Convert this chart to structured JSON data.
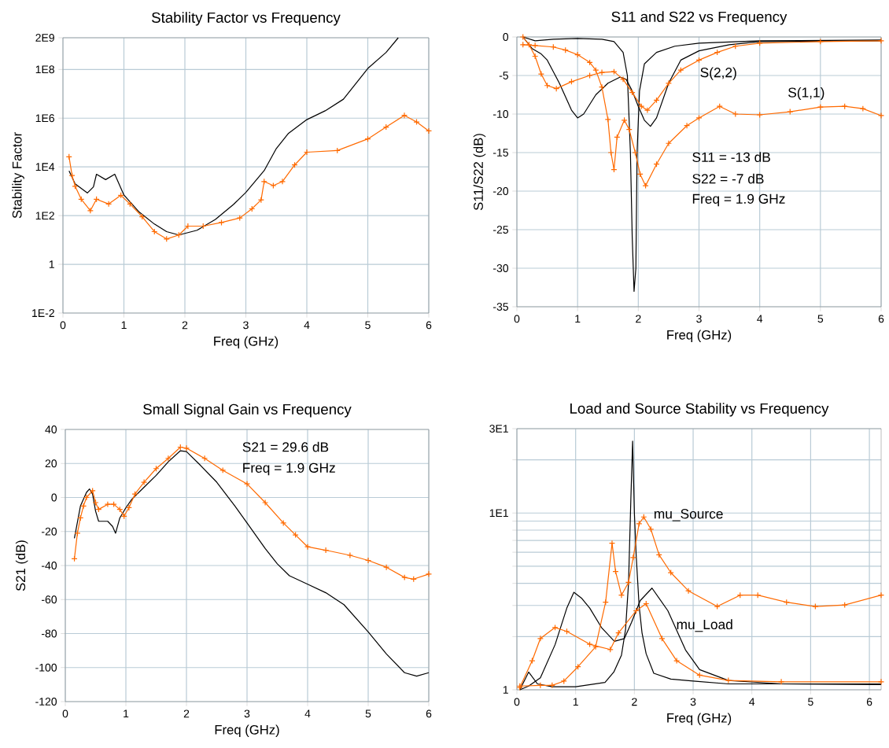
{
  "chart_data": [
    {
      "type": "line",
      "title": "Stability Factor vs Frequency",
      "xlabel": "Freq (GHz)",
      "ylabel": "Stability Factor",
      "log": true,
      "grid": true,
      "xlim": [
        0,
        6
      ],
      "xticks": [
        0,
        1,
        2,
        3,
        4,
        5,
        6
      ],
      "ylim": [
        0.01,
        2000000000
      ],
      "yticks": [
        {
          "value": 0.01,
          "label": "1E-2"
        },
        1,
        {
          "value": 100,
          "label": "1E2"
        },
        {
          "value": 10000,
          "label": "1E4"
        },
        {
          "value": 1000000,
          "label": "1E6"
        },
        {
          "value": 100000000,
          "label": "1E8"
        },
        {
          "value": 2000000000,
          "label": "2E9"
        }
      ],
      "series": [
        {
          "color": "#000000",
          "marker": "none",
          "x": [
            0.1,
            0.2,
            0.4,
            0.5,
            0.55,
            0.7,
            0.85,
            1.0,
            1.25,
            1.5,
            1.7,
            1.9,
            2.2,
            2.5,
            2.8,
            3.0,
            3.3,
            3.5,
            3.7,
            4.0,
            4.3,
            4.6,
            5.0,
            5.3,
            5.5
          ],
          "values": [
            6800,
            2000,
            850,
            1500,
            5000,
            3000,
            5000,
            700,
            140,
            45,
            22,
            16,
            25,
            70,
            290,
            900,
            7000,
            57000,
            240000,
            870000,
            2000000,
            6000000,
            110000000,
            500000000,
            2000000000
          ]
        },
        {
          "color": "#ff6a00",
          "marker": "cross",
          "x": [
            0.1,
            0.15,
            0.2,
            0.3,
            0.45,
            0.55,
            0.75,
            0.95,
            1.1,
            1.3,
            1.5,
            1.7,
            1.9,
            2.05,
            2.3,
            2.6,
            2.9,
            3.1,
            3.25,
            3.3,
            3.45,
            3.6,
            3.8,
            4.0,
            4.5,
            5.0,
            5.3,
            5.6,
            5.8,
            6.0
          ],
          "values": [
            26000,
            4400,
            1600,
            470,
            160,
            470,
            300,
            680,
            300,
            90,
            22,
            11,
            16,
            37,
            37,
            52,
            80,
            190,
            440,
            2500,
            1700,
            2500,
            12000,
            40000,
            47000,
            140000,
            430000,
            1300000,
            700000,
            300000
          ]
        }
      ]
    },
    {
      "type": "line",
      "title": "S11 and S22 vs Frequency",
      "xlabel": "Freq (GHz)",
      "ylabel": "S11/S22 (dB)",
      "grid": true,
      "xlim": [
        0,
        6
      ],
      "xticks": [
        0,
        1,
        2,
        3,
        4,
        5,
        6
      ],
      "ylim": [
        -35,
        0
      ],
      "yticks": [
        -35,
        -30,
        -25,
        -20,
        -15,
        -10,
        -5,
        0
      ],
      "annotations": [
        "S(2,2)",
        "S(1,1)",
        "S11 = -13 dB",
        "S22 = -7 dB",
        "Freq = 1.9 GHz"
      ],
      "series": [
        {
          "color": "#000000",
          "marker": "none",
          "x": [
            0.1,
            0.3,
            0.6,
            1.0,
            1.4,
            1.6,
            1.75,
            1.82,
            1.87,
            1.9,
            1.93,
            1.96,
            1.98,
            2.02,
            2.1,
            2.3,
            2.6,
            3.0,
            4.0,
            6.0
          ],
          "values": [
            0,
            -0.5,
            -0.3,
            -0.2,
            -0.3,
            -0.6,
            -2,
            -5,
            -15,
            -26,
            -33,
            -30,
            -15,
            -7,
            -3.5,
            -2,
            -1.2,
            -0.8,
            -0.5,
            -0.4
          ]
        },
        {
          "color": "#000000",
          "marker": "none",
          "x": [
            0.1,
            0.25,
            0.4,
            0.5,
            0.7,
            0.9,
            1.0,
            1.1,
            1.3,
            1.5,
            1.7,
            1.8,
            1.9,
            2.0,
            2.1,
            2.2,
            2.3,
            2.5,
            2.7,
            3.0,
            3.5,
            4.0,
            6.0
          ],
          "values": [
            0,
            -1.5,
            -2.2,
            -3,
            -6,
            -9.5,
            -10.5,
            -10,
            -7.5,
            -6,
            -5.2,
            -5.5,
            -7,
            -9,
            -10.8,
            -11.6,
            -10.5,
            -6,
            -3,
            -1.8,
            -1,
            -0.6,
            -0.5
          ]
        },
        {
          "color": "#ff6a00",
          "marker": "cross",
          "x": [
            0.1,
            0.2,
            0.3,
            0.4,
            0.5,
            0.65,
            0.9,
            1.2,
            1.4,
            1.6,
            1.75,
            1.9,
            2.05,
            2.15,
            2.3,
            2.5,
            2.7,
            3.0,
            3.3,
            3.6,
            4.0,
            5.0,
            6.0
          ],
          "values": [
            0,
            -1,
            -2.5,
            -4.8,
            -6.3,
            -6.7,
            -5.8,
            -5,
            -4.6,
            -4.5,
            -5.5,
            -7.2,
            -9,
            -9.5,
            -8.2,
            -6,
            -4.3,
            -3,
            -2,
            -1.2,
            -0.8,
            -0.6,
            -0.5
          ]
        },
        {
          "color": "#ff6a00",
          "marker": "cross",
          "x": [
            0.1,
            0.3,
            0.6,
            0.8,
            1.0,
            1.2,
            1.3,
            1.4,
            1.5,
            1.55,
            1.6,
            1.65,
            1.77,
            1.85,
            1.95,
            2.03,
            2.12,
            2.3,
            2.5,
            2.8,
            3.0,
            3.34,
            3.6,
            4.0,
            4.5,
            5.0,
            5.4,
            5.7,
            6.0
          ],
          "values": [
            -1,
            -1.1,
            -1.3,
            -1.7,
            -2.3,
            -3.3,
            -4.3,
            -6.5,
            -10.7,
            -15,
            -17.2,
            -13,
            -10.8,
            -12,
            -15,
            -17.8,
            -19.3,
            -16.5,
            -13.8,
            -11.5,
            -10.5,
            -9,
            -10,
            -10.1,
            -9.7,
            -9.1,
            -9,
            -9.3,
            -10.2
          ]
        }
      ]
    },
    {
      "type": "line",
      "title": "Small  Signal Gain vs Frequency",
      "xlabel": "Freq (GHz)",
      "ylabel": "S21 (dB)",
      "grid": true,
      "xlim": [
        0,
        6
      ],
      "xticks": [
        0,
        1,
        2,
        3,
        4,
        5,
        6
      ],
      "ylim": [
        -120,
        40
      ],
      "yticks": [
        -120,
        -100,
        -80,
        -60,
        -40,
        -20,
        0,
        20,
        40
      ],
      "annotations": [
        "S21 = 29.6 dB",
        "Freq = 1.9 GHz"
      ],
      "series": [
        {
          "color": "#000000",
          "marker": "none",
          "x": [
            0.15,
            0.25,
            0.35,
            0.4,
            0.45,
            0.5,
            0.55,
            0.7,
            0.78,
            0.83,
            0.9,
            1.0,
            1.1,
            1.3,
            1.5,
            1.7,
            1.9,
            2.0,
            2.2,
            2.5,
            2.8,
            3.0,
            3.3,
            3.5,
            3.7,
            4.0,
            4.3,
            4.6,
            5.0,
            5.3,
            5.6,
            5.8,
            6.0
          ],
          "values": [
            -24,
            -5,
            3,
            5,
            2,
            -8,
            -14,
            -14,
            -17,
            -21,
            -12,
            -6,
            -1,
            6,
            13,
            21,
            27.5,
            27,
            20,
            9,
            -5,
            -15,
            -30,
            -39,
            -46,
            -51,
            -56,
            -63,
            -79,
            -92,
            -103,
            -105,
            -103
          ]
        },
        {
          "color": "#ff6a00",
          "marker": "cross",
          "x": [
            0.15,
            0.2,
            0.25,
            0.3,
            0.35,
            0.45,
            0.5,
            0.55,
            0.7,
            0.8,
            0.9,
            0.97,
            1.05,
            1.15,
            1.3,
            1.5,
            1.7,
            1.9,
            2.0,
            2.3,
            2.6,
            3.0,
            3.3,
            3.6,
            3.8,
            4.0,
            4.3,
            4.7,
            5.0,
            5.3,
            5.6,
            5.75,
            6.0
          ],
          "values": [
            -36,
            -21,
            -12,
            -5,
            0,
            4,
            -3,
            -7,
            -4,
            -4,
            -7,
            -11,
            -6,
            2,
            9,
            17,
            23,
            29.6,
            29,
            23,
            16,
            8,
            -3,
            -15,
            -22,
            -29,
            -31,
            -34,
            -37,
            -41,
            -47,
            -48,
            -45
          ]
        }
      ]
    },
    {
      "type": "line",
      "title": "Load and Source Stability vs Frequency",
      "xlabel": "Freq (GHz)",
      "log": true,
      "grid": true,
      "xlim": [
        0,
        6.2
      ],
      "xticks": [
        0,
        1,
        2,
        3,
        4,
        5,
        6
      ],
      "ylim": [
        1,
        30
      ],
      "yticks": [
        1,
        {
          "value": 2,
          "label": null
        },
        {
          "value": 3,
          "label": null
        },
        {
          "value": 4,
          "label": null
        },
        {
          "value": 5,
          "label": null
        },
        {
          "value": 6,
          "label": null
        },
        {
          "value": 7,
          "label": null
        },
        {
          "value": 8,
          "label": null
        },
        {
          "value": 9,
          "label": null
        },
        {
          "value": 10,
          "label": "1E1"
        },
        {
          "value": 20,
          "label": null
        },
        {
          "value": 30,
          "label": "3E1"
        }
      ],
      "annotations": [
        "mu_Source",
        "mu_Load"
      ],
      "series": [
        {
          "color": "#000000",
          "marker": "none",
          "x": [
            0.05,
            0.2,
            0.35,
            0.6,
            1.0,
            1.5,
            1.65,
            1.78,
            1.85,
            1.9,
            1.94,
            1.97,
            2.0,
            2.03,
            2.08,
            2.13,
            2.2,
            2.33,
            2.62,
            3.0,
            3.6,
            6.2
          ],
          "values": [
            1.0,
            1.26,
            1.08,
            1.04,
            1.04,
            1.1,
            1.26,
            1.57,
            2.2,
            4,
            12,
            25.5,
            10,
            5.8,
            3,
            2.1,
            1.6,
            1.24,
            1.15,
            1.12,
            1.08,
            1.08
          ]
        },
        {
          "color": "#000000",
          "marker": "none",
          "x": [
            0.05,
            0.2,
            0.4,
            0.65,
            0.85,
            0.97,
            1.1,
            1.24,
            1.44,
            1.66,
            1.83,
            1.95,
            2.1,
            2.3,
            2.57,
            2.87,
            3.11,
            3.6,
            4.5,
            6.2
          ],
          "values": [
            1.0,
            1.05,
            1.17,
            1.8,
            2.9,
            3.56,
            3.3,
            2.9,
            2.25,
            1.88,
            1.95,
            2.4,
            3.2,
            3.76,
            2.8,
            1.68,
            1.3,
            1.13,
            1.08,
            1.07
          ]
        },
        {
          "color": "#ff6a00",
          "marker": "cross",
          "x": [
            0.05,
            0.26,
            0.4,
            0.65,
            0.85,
            1.24,
            1.59,
            1.73,
            2.03,
            2.2,
            2.47,
            2.72,
            3.11,
            3.6,
            4.5,
            6.2
          ],
          "values": [
            1.03,
            1.46,
            1.95,
            2.25,
            2.14,
            1.81,
            1.69,
            2.1,
            2.8,
            3.07,
            1.95,
            1.46,
            1.21,
            1.13,
            1.11,
            1.11
          ]
        },
        {
          "color": "#ff6a00",
          "marker": "cross",
          "x": [
            0.05,
            0.4,
            0.6,
            0.8,
            1.04,
            1.34,
            1.51,
            1.62,
            1.68,
            1.78,
            1.9,
            1.98,
            2.08,
            2.16,
            2.28,
            2.42,
            2.62,
            2.92,
            3.41,
            3.8,
            4.1,
            4.59,
            5.08,
            5.58,
            6.2
          ],
          "values": [
            1.05,
            1.06,
            1.06,
            1.12,
            1.35,
            1.75,
            3.13,
            6.75,
            4.67,
            3.43,
            4.05,
            5.6,
            8.7,
            9.5,
            8.1,
            5.8,
            4.6,
            3.63,
            2.96,
            3.43,
            3.43,
            3.13,
            2.96,
            3.02,
            3.43
          ]
        }
      ]
    }
  ]
}
